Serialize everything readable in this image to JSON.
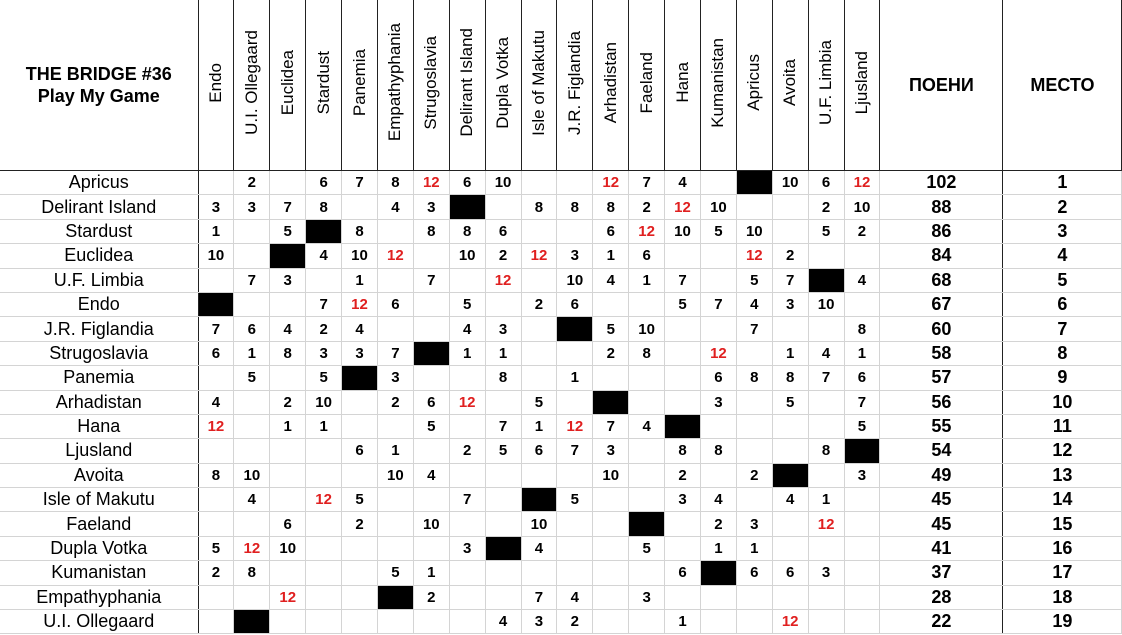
{
  "header": {
    "title": "THE BRIDGE #36",
    "subtitle": "Play My Game"
  },
  "columns": [
    "Endo",
    "U.I. Ollegaard",
    "Euclidea",
    "Stardust",
    "Panemia",
    "Empathyphania",
    "Strugoslavia",
    "Delirant Island",
    "Dupla Votka",
    "Isle of Makutu",
    "J.R. Figlandia",
    "Arhadistan",
    "Faeland",
    "Hana",
    "Kumanistan",
    "Apricus",
    "Avoita",
    "U.F. Limbia",
    "Ljusland"
  ],
  "points_label": "ПОЕНИ",
  "place_label": "МЕСТО",
  "rows": [
    {
      "country": "Apricus",
      "scores": [
        null,
        2,
        null,
        6,
        7,
        8,
        12,
        6,
        10,
        null,
        null,
        12,
        7,
        4,
        null,
        null,
        10,
        6,
        12
      ],
      "points": 102,
      "place": 1
    },
    {
      "country": "Delirant Island",
      "scores": [
        3,
        3,
        7,
        8,
        null,
        4,
        3,
        null,
        null,
        8,
        8,
        8,
        2,
        12,
        10,
        null,
        null,
        2,
        10
      ],
      "points": 88,
      "place": 2
    },
    {
      "country": "Stardust",
      "scores": [
        1,
        null,
        5,
        null,
        8,
        null,
        8,
        8,
        6,
        null,
        null,
        6,
        12,
        10,
        5,
        10,
        null,
        5,
        2
      ],
      "points": 86,
      "place": 3
    },
    {
      "country": "Euclidea",
      "scores": [
        10,
        null,
        null,
        4,
        10,
        12,
        null,
        10,
        2,
        12,
        3,
        1,
        6,
        null,
        null,
        12,
        2,
        null,
        null
      ],
      "points": 84,
      "place": 4
    },
    {
      "country": "U.F. Limbia",
      "scores": [
        null,
        7,
        3,
        null,
        1,
        null,
        7,
        null,
        12,
        null,
        10,
        4,
        1,
        7,
        null,
        5,
        7,
        null,
        4
      ],
      "points": 68,
      "place": 5
    },
    {
      "country": "Endo",
      "scores": [
        null,
        null,
        null,
        7,
        12,
        6,
        null,
        5,
        null,
        2,
        6,
        null,
        null,
        5,
        7,
        4,
        3,
        10,
        null
      ],
      "points": 67,
      "place": 6
    },
    {
      "country": "J.R. Figlandia",
      "scores": [
        7,
        6,
        4,
        2,
        4,
        null,
        null,
        4,
        3,
        null,
        null,
        5,
        10,
        null,
        null,
        7,
        null,
        null,
        8
      ],
      "points": 60,
      "place": 7
    },
    {
      "country": "Strugoslavia",
      "scores": [
        6,
        1,
        8,
        3,
        3,
        7,
        null,
        1,
        1,
        null,
        null,
        2,
        8,
        null,
        12,
        null,
        1,
        4,
        1
      ],
      "points": 58,
      "place": 8
    },
    {
      "country": "Panemia",
      "scores": [
        null,
        5,
        null,
        5,
        null,
        3,
        null,
        null,
        8,
        null,
        1,
        null,
        null,
        null,
        6,
        8,
        8,
        7,
        6
      ],
      "points": 57,
      "place": 9
    },
    {
      "country": "Arhadistan",
      "scores": [
        4,
        null,
        2,
        10,
        null,
        2,
        6,
        12,
        null,
        5,
        null,
        null,
        null,
        null,
        3,
        null,
        5,
        null,
        7
      ],
      "points": 56,
      "place": 10
    },
    {
      "country": "Hana",
      "scores": [
        12,
        null,
        1,
        1,
        null,
        null,
        5,
        null,
        7,
        1,
        12,
        7,
        4,
        null,
        null,
        null,
        null,
        null,
        5
      ],
      "points": 55,
      "place": 11
    },
    {
      "country": "Ljusland",
      "scores": [
        null,
        null,
        null,
        null,
        6,
        1,
        null,
        2,
        5,
        6,
        7,
        3,
        null,
        8,
        8,
        null,
        null,
        8,
        null
      ],
      "points": 54,
      "place": 12
    },
    {
      "country": "Avoita",
      "scores": [
        8,
        10,
        null,
        null,
        null,
        10,
        4,
        null,
        null,
        null,
        null,
        10,
        null,
        2,
        null,
        2,
        null,
        null,
        3
      ],
      "points": 49,
      "place": 13
    },
    {
      "country": "Isle of Makutu",
      "scores": [
        null,
        4,
        null,
        12,
        5,
        null,
        null,
        7,
        null,
        null,
        5,
        null,
        null,
        3,
        4,
        null,
        4,
        1,
        null
      ],
      "points": 45,
      "place": 14
    },
    {
      "country": "Faeland",
      "scores": [
        null,
        null,
        6,
        null,
        2,
        null,
        10,
        null,
        null,
        10,
        null,
        null,
        null,
        null,
        2,
        3,
        null,
        12,
        null
      ],
      "points": 45,
      "place": 15
    },
    {
      "country": "Dupla Votka",
      "scores": [
        5,
        12,
        10,
        null,
        null,
        null,
        null,
        3,
        null,
        4,
        null,
        null,
        5,
        null,
        1,
        1,
        null,
        null,
        null
      ],
      "points": 41,
      "place": 16
    },
    {
      "country": "Kumanistan",
      "scores": [
        2,
        8,
        null,
        null,
        null,
        5,
        1,
        null,
        null,
        null,
        null,
        null,
        null,
        6,
        null,
        6,
        6,
        3,
        null
      ],
      "points": 37,
      "place": 17
    },
    {
      "country": "Empathyphania",
      "scores": [
        null,
        null,
        12,
        null,
        null,
        null,
        2,
        null,
        null,
        7,
        4,
        null,
        3,
        null,
        null,
        null,
        null,
        null,
        null
      ],
      "points": 28,
      "place": 18
    },
    {
      "country": "U.I. Ollegaard",
      "scores": [
        null,
        null,
        null,
        null,
        null,
        null,
        null,
        null,
        4,
        3,
        2,
        null,
        null,
        1,
        null,
        null,
        12,
        null,
        null
      ],
      "points": 22,
      "place": 19
    }
  ]
}
